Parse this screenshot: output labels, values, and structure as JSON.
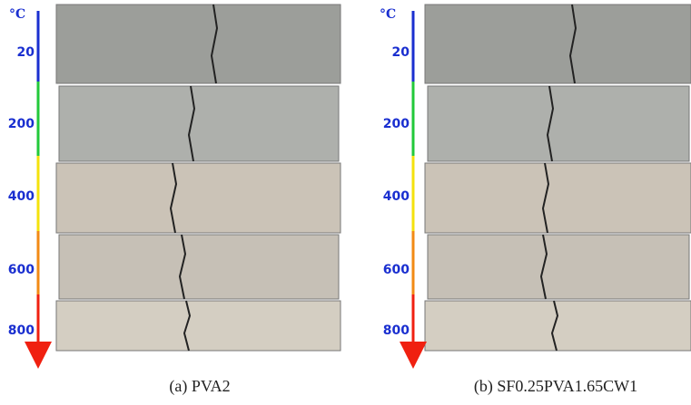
{
  "panels": [
    {
      "unit": "°C",
      "ticks": [
        "20",
        "200",
        "400",
        "600",
        "800"
      ],
      "caption": "(a) PVA2"
    },
    {
      "unit": "°C",
      "ticks": [
        "20",
        "200",
        "400",
        "600",
        "800"
      ],
      "caption": "(b) SF0.25PVA1.65CW1"
    }
  ]
}
